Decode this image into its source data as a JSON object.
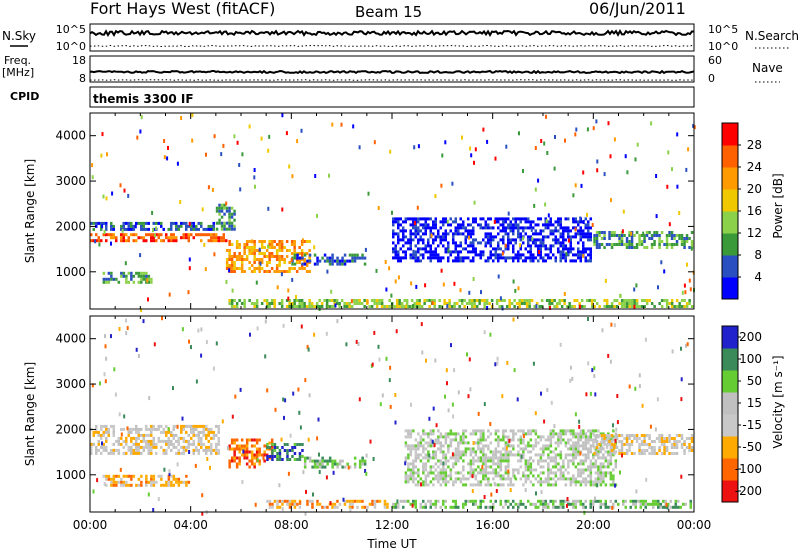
{
  "header": {
    "station": "Fort Hays West (fitACF)",
    "beam": "Beam 15",
    "date": "06/Jun/2011"
  },
  "nsky_panel": {
    "left_label": "N.Sky",
    "right_label": "N.Search",
    "left_ticks": [
      "10^5",
      "10^0"
    ],
    "right_ticks": [
      "10^5",
      "10^0"
    ]
  },
  "freq_panel": {
    "left_label_line1": "Freq.",
    "left_label_line2": "[MHz]",
    "right_label": "Nave",
    "left_ticks": [
      "18",
      "8"
    ],
    "right_ticks": [
      "60",
      "0"
    ]
  },
  "cpid_panel": {
    "label": "CPID",
    "program": "themis 3300 IF"
  },
  "colors": {
    "power": [
      "#0000ff",
      "#2a4fc0",
      "#3a9a3a",
      "#8bd14a",
      "#f0c800",
      "#ff9a00",
      "#ff6000",
      "#ff0000"
    ],
    "velocity": [
      "#ee1111",
      "#ff6600",
      "#ffaa00",
      "#c8c8c8",
      "#c0c0c0",
      "#66cc33",
      "#3a8a5a",
      "#2222cc"
    ]
  },
  "chart_data": [
    {
      "type": "heatmap",
      "panel": "power",
      "ylabel": "Slant Range [km]",
      "yticks": [
        "4000",
        "3000",
        "2000",
        "1000"
      ],
      "ylim": [
        180,
        4500
      ],
      "xlim": [
        0,
        24
      ],
      "colorbar_label": "Power [dB]",
      "colorbar_ticks": [
        "28",
        "24",
        "20",
        "16",
        "12",
        "8",
        "4"
      ],
      "bands": [
        {
          "t0": 0.0,
          "t1": 5.6,
          "r0": 1600,
          "r1": 1850,
          "level": 6
        },
        {
          "t0": 0.0,
          "t1": 5.0,
          "r0": 1850,
          "r1": 2100,
          "level": 1
        },
        {
          "t0": 0.5,
          "t1": 2.5,
          "r0": 700,
          "r1": 1000,
          "level": 2
        },
        {
          "t0": 5.4,
          "t1": 8.8,
          "r0": 950,
          "r1": 1700,
          "level": 5
        },
        {
          "t0": 5.0,
          "t1": 5.8,
          "r0": 1900,
          "r1": 2500,
          "level": 2
        },
        {
          "t0": 8.0,
          "t1": 11.0,
          "r0": 1100,
          "r1": 1400,
          "level": 1
        },
        {
          "t0": 12.0,
          "t1": 20.0,
          "r0": 1200,
          "r1": 2200,
          "level": 0
        },
        {
          "t0": 20.0,
          "t1": 24.0,
          "r0": 1500,
          "r1": 1900,
          "level": 2
        },
        {
          "t0": 5.5,
          "t1": 24.0,
          "r0": 180,
          "r1": 400,
          "level": 3
        }
      ]
    },
    {
      "type": "heatmap",
      "panel": "velocity",
      "ylabel": "Slant Range [km]",
      "yticks": [
        "4000",
        "3000",
        "2000",
        "1000"
      ],
      "ylim": [
        180,
        4500
      ],
      "xlim": [
        0,
        24
      ],
      "xticks": [
        "00:00",
        "04:00",
        "08:00",
        "12:00",
        "16:00",
        "20:00",
        "00:00"
      ],
      "xlabel": "Time UT",
      "colorbar_label": "Velocity [m s⁻¹]",
      "colorbar_ticks": [
        "200",
        "100",
        "50",
        "15",
        "-15",
        "-50",
        "-100",
        "-200"
      ],
      "bands": [
        {
          "t0": 0.0,
          "t1": 5.2,
          "r0": 1400,
          "r1": 2100,
          "level": 3
        },
        {
          "t0": 0.5,
          "t1": 4.0,
          "r0": 700,
          "r1": 1000,
          "level": 2
        },
        {
          "t0": 5.5,
          "t1": 7.3,
          "r0": 1100,
          "r1": 1800,
          "level": 1
        },
        {
          "t0": 7.0,
          "t1": 8.5,
          "r0": 1300,
          "r1": 1700,
          "level": 6
        },
        {
          "t0": 8.5,
          "t1": 11.0,
          "r0": 1100,
          "r1": 1400,
          "level": 5
        },
        {
          "t0": 12.5,
          "t1": 21.0,
          "r0": 700,
          "r1": 2000,
          "level": 4
        },
        {
          "t0": 20.0,
          "t1": 24.0,
          "r0": 1400,
          "r1": 1900,
          "level": 3
        },
        {
          "t0": 7.0,
          "t1": 12.0,
          "r0": 200,
          "r1": 450,
          "level": 2
        },
        {
          "t0": 12.0,
          "t1": 24.0,
          "r0": 200,
          "r1": 450,
          "level": 5
        }
      ]
    }
  ]
}
